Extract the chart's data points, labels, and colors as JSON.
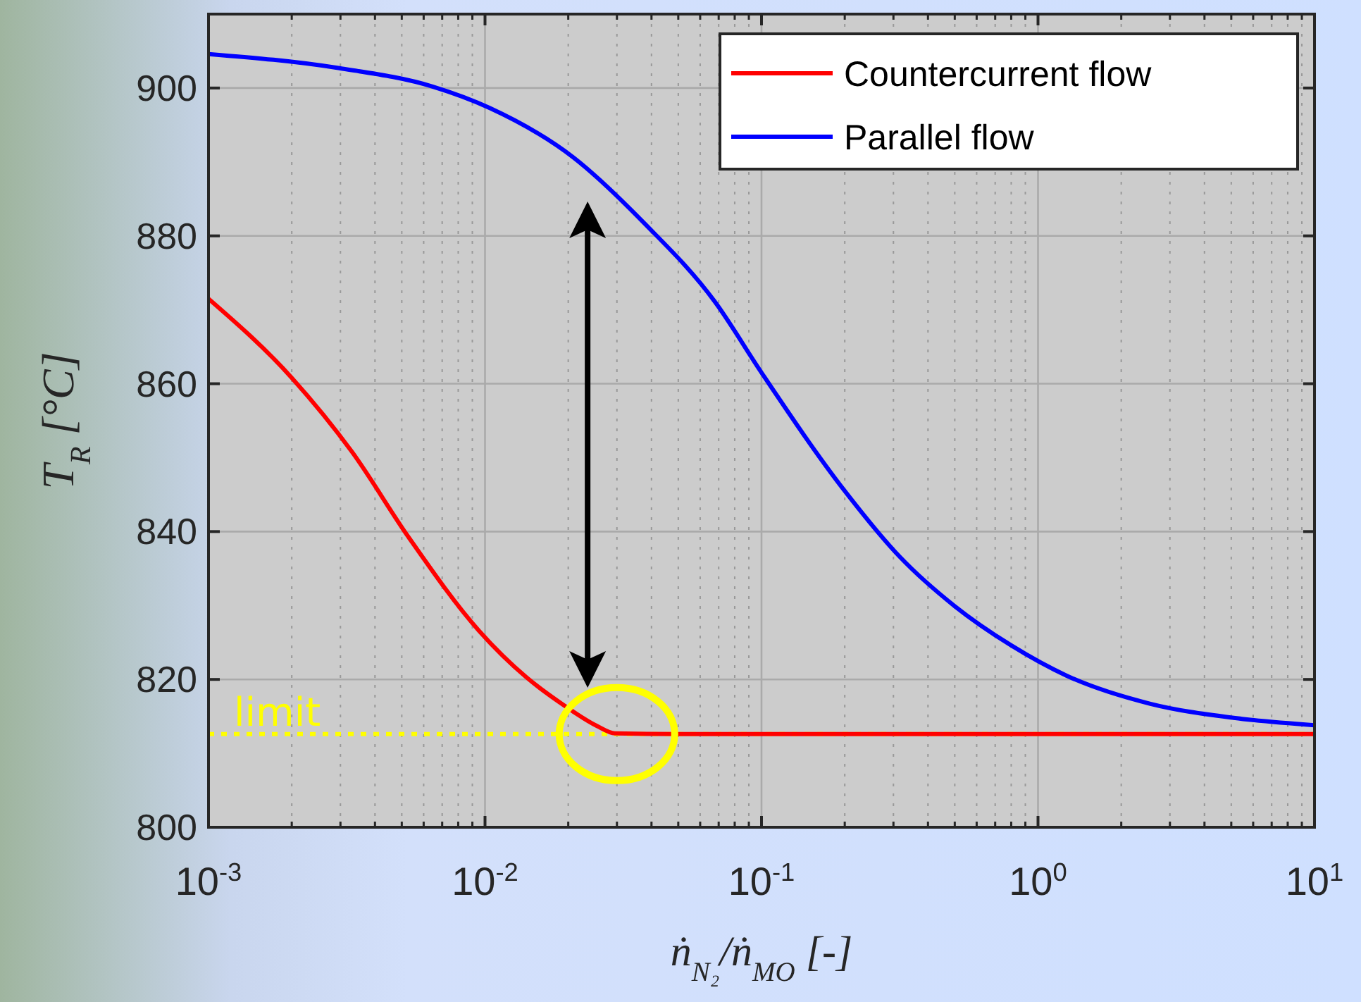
{
  "chart_data": {
    "type": "line",
    "xlabel": "ṅ$_{N₂}$/ṅ$_{MO}$ [-]",
    "ylabel": "T$_{R}$ [°C]",
    "log": "x",
    "xlim": [
      0.001,
      10
    ],
    "ylim": [
      800,
      910
    ],
    "xticks": [
      {
        "value": 0.001,
        "label": "10$^{-3}$"
      },
      {
        "value": 0.01,
        "label": "10$^{-2}$"
      },
      {
        "value": 0.1,
        "label": "10$^{-1}$"
      },
      {
        "value": 1,
        "label": "10$^{0}$"
      },
      {
        "value": 10,
        "label": "10$^{1}$"
      }
    ],
    "yticks": [
      800,
      820,
      840,
      860,
      880,
      900
    ],
    "grid": true,
    "legend": "top right",
    "line_style": "solid",
    "marker": "none",
    "series": [
      {
        "name": "Countercurrent flow",
        "color": "#ff0000",
        "x": [
          0.001,
          0.002,
          0.0033,
          0.0053,
          0.0095,
          0.0141,
          0.0193,
          0.0254,
          0.0295,
          0.05,
          0.1,
          1,
          10
        ],
        "values": [
          871.5,
          860.8,
          850.8,
          839.2,
          826.6,
          820.3,
          816.5,
          813.7,
          812.7,
          812.6,
          812.6,
          812.6,
          812.6
        ]
      },
      {
        "name": "Parallel flow",
        "color": "#0000ff",
        "x": [
          0.001,
          0.00295,
          0.00646,
          0.0104,
          0.0209,
          0.0377,
          0.0678,
          0.1,
          0.199,
          0.316,
          0.5,
          0.8,
          1.27,
          2.55,
          5.1,
          10
        ],
        "values": [
          904.6,
          902.7,
          900.2,
          897.3,
          890.6,
          881.7,
          871.1,
          861.5,
          845.6,
          836.6,
          829.9,
          824.6,
          820.5,
          816.7,
          814.8,
          813.8
        ]
      }
    ],
    "ref_lines": [
      {
        "axis": "y",
        "value": 812.6,
        "label": "limit",
        "color": "#ffff00",
        "line_style": "dotted"
      }
    ]
  }
}
